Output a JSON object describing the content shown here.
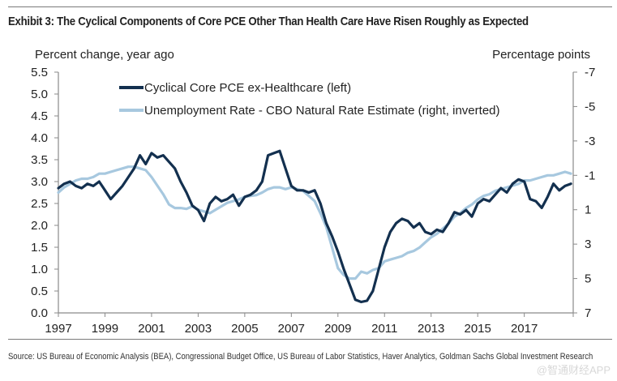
{
  "exhibit": {
    "title": "Exhibit 3: The Cyclical Components of Core PCE Other Than Health Care Have Risen Roughly as Expected",
    "source": "Source: US Bureau of Economic Analysis (BEA), Congressional Budget Office, US Bureau of Labor Statistics, Haver Analytics, Goldman Sachs Global Investment Research",
    "watermark": "@智通财经APP"
  },
  "chart_data": {
    "type": "line",
    "title": "Exhibit 3: The Cyclical Components of Core PCE Other Than Health Care Have Risen Roughly as Expected",
    "ylabel_left": "Percent change, year ago",
    "ylabel_right": "Percentage points",
    "xlabel": "",
    "xlim": [
      1997,
      2019.1
    ],
    "ylim_left": [
      0.0,
      5.5
    ],
    "ylim_right": [
      7,
      -7
    ],
    "right_axis_inverted": true,
    "grid": false,
    "legend_position": "top-left",
    "x_ticks": [
      "1997",
      "1999",
      "2001",
      "2003",
      "2005",
      "2007",
      "2009",
      "2011",
      "2013",
      "2015",
      "2017"
    ],
    "y_ticks_left": [
      "0.0",
      "0.5",
      "1.0",
      "1.5",
      "2.0",
      "2.5",
      "3.0",
      "3.5",
      "4.0",
      "4.5",
      "5.0",
      "5.5"
    ],
    "y_ticks_right": [
      "-7",
      "-5",
      "-3",
      "-1",
      "1",
      "3",
      "5",
      "7"
    ],
    "series": [
      {
        "name": "Cyclical Core PCE ex-Healthcare (left)",
        "axis": "left",
        "color": "#13304f",
        "x": [
          1997.0,
          1997.25,
          1997.5,
          1997.75,
          1998.0,
          1998.25,
          1998.5,
          1998.75,
          1999.0,
          1999.25,
          1999.5,
          1999.75,
          2000.0,
          2000.25,
          2000.5,
          2000.75,
          2001.0,
          2001.25,
          2001.5,
          2001.75,
          2002.0,
          2002.25,
          2002.5,
          2002.75,
          2003.0,
          2003.25,
          2003.5,
          2003.75,
          2004.0,
          2004.25,
          2004.5,
          2004.75,
          2005.0,
          2005.25,
          2005.5,
          2005.75,
          2006.0,
          2006.25,
          2006.5,
          2006.75,
          2007.0,
          2007.25,
          2007.5,
          2007.75,
          2008.0,
          2008.25,
          2008.5,
          2008.75,
          2009.0,
          2009.25,
          2009.5,
          2009.75,
          2010.0,
          2010.25,
          2010.5,
          2010.75,
          2011.0,
          2011.25,
          2011.5,
          2011.75,
          2012.0,
          2012.25,
          2012.5,
          2012.75,
          2013.0,
          2013.25,
          2013.5,
          2013.75,
          2014.0,
          2014.25,
          2014.5,
          2014.75,
          2015.0,
          2015.25,
          2015.5,
          2015.75,
          2016.0,
          2016.25,
          2016.5,
          2016.75,
          2017.0,
          2017.25,
          2017.5,
          2017.75,
          2018.0,
          2018.25,
          2018.5,
          2018.75,
          2019.0
        ],
        "values": [
          2.85,
          2.95,
          3.0,
          2.9,
          2.85,
          2.95,
          2.9,
          3.0,
          2.8,
          2.6,
          2.75,
          2.9,
          3.1,
          3.3,
          3.6,
          3.4,
          3.65,
          3.55,
          3.6,
          3.45,
          3.3,
          3.0,
          2.75,
          2.45,
          2.35,
          2.1,
          2.5,
          2.65,
          2.55,
          2.6,
          2.7,
          2.45,
          2.65,
          2.7,
          2.8,
          3.0,
          3.6,
          3.65,
          3.7,
          3.3,
          2.9,
          2.8,
          2.8,
          2.75,
          2.8,
          2.5,
          2.05,
          1.75,
          1.4,
          1.0,
          0.65,
          0.3,
          0.25,
          0.28,
          0.5,
          1.0,
          1.5,
          1.85,
          2.05,
          2.15,
          2.1,
          1.95,
          2.05,
          1.85,
          1.8,
          1.9,
          1.85,
          2.05,
          2.3,
          2.25,
          2.35,
          2.2,
          2.5,
          2.6,
          2.55,
          2.7,
          2.85,
          2.75,
          2.95,
          3.05,
          3.0,
          2.6,
          2.55,
          2.4,
          2.65,
          2.95,
          2.8,
          2.9,
          2.95
        ]
      },
      {
        "name": "Unemployment Rate - CBO Natural Rate Estimate (right, inverted)",
        "axis": "right",
        "color": "#a7c8df",
        "x": [
          1997.0,
          1997.25,
          1997.5,
          1997.75,
          1998.0,
          1998.25,
          1998.5,
          1998.75,
          1999.0,
          1999.25,
          1999.5,
          1999.75,
          2000.0,
          2000.25,
          2000.5,
          2000.75,
          2001.0,
          2001.25,
          2001.5,
          2001.75,
          2002.0,
          2002.25,
          2002.5,
          2002.75,
          2003.0,
          2003.25,
          2003.5,
          2003.75,
          2004.0,
          2004.25,
          2004.5,
          2004.75,
          2005.0,
          2005.25,
          2005.5,
          2005.75,
          2006.0,
          2006.25,
          2006.5,
          2006.75,
          2007.0,
          2007.25,
          2007.5,
          2007.75,
          2008.0,
          2008.25,
          2008.5,
          2008.75,
          2009.0,
          2009.25,
          2009.5,
          2009.75,
          2010.0,
          2010.25,
          2010.5,
          2010.75,
          2011.0,
          2011.25,
          2011.5,
          2011.75,
          2012.0,
          2012.25,
          2012.5,
          2012.75,
          2013.0,
          2013.25,
          2013.5,
          2013.75,
          2014.0,
          2014.25,
          2014.5,
          2014.75,
          2015.0,
          2015.25,
          2015.5,
          2015.75,
          2016.0,
          2016.25,
          2016.5,
          2016.75,
          2017.0,
          2017.25,
          2017.5,
          2017.75,
          2018.0,
          2018.25,
          2018.5,
          2018.75,
          2019.0
        ],
        "values": [
          0.0,
          -0.3,
          -0.5,
          -0.7,
          -0.8,
          -0.8,
          -0.9,
          -1.1,
          -1.1,
          -1.2,
          -1.3,
          -1.4,
          -1.5,
          -1.5,
          -1.4,
          -1.3,
          -0.9,
          -0.4,
          0.1,
          0.7,
          0.9,
          0.9,
          0.95,
          0.8,
          1.0,
          1.1,
          1.2,
          1.0,
          0.8,
          0.6,
          0.5,
          0.4,
          0.25,
          0.2,
          0.15,
          0.0,
          -0.2,
          -0.3,
          -0.3,
          -0.2,
          -0.3,
          -0.2,
          -0.1,
          0.2,
          0.5,
          1.2,
          2.0,
          3.2,
          4.4,
          4.8,
          5.0,
          5.0,
          4.6,
          4.7,
          4.5,
          4.4,
          4.0,
          3.9,
          3.8,
          3.7,
          3.5,
          3.4,
          3.2,
          2.9,
          2.6,
          2.4,
          2.1,
          1.8,
          1.4,
          1.2,
          0.9,
          0.7,
          0.4,
          0.2,
          0.1,
          -0.1,
          -0.2,
          -0.3,
          -0.4,
          -0.5,
          -0.7,
          -0.7,
          -0.8,
          -0.9,
          -1.0,
          -1.0,
          -1.1,
          -1.2,
          -1.1
        ]
      }
    ]
  }
}
